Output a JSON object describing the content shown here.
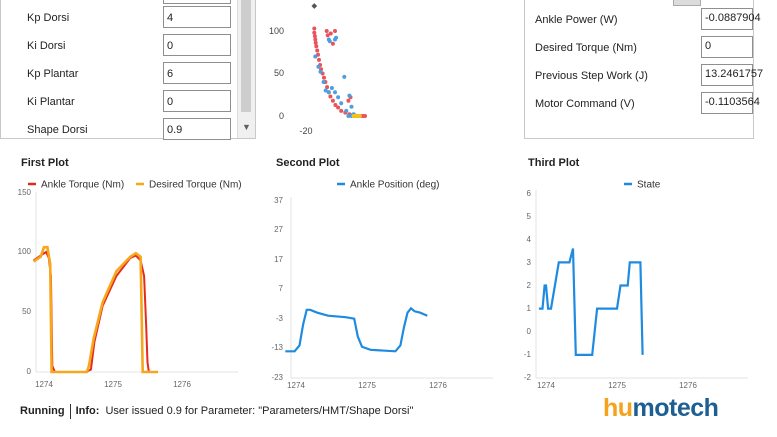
{
  "parameters": [
    {
      "label": "Kp Dorsi",
      "value": "4"
    },
    {
      "label": "Ki Dorsi",
      "value": "0"
    },
    {
      "label": "Kp Plantar",
      "value": "6"
    },
    {
      "label": "Ki Plantar",
      "value": "0"
    },
    {
      "label": "Shape Dorsi",
      "value": "0.9"
    }
  ],
  "status_fields": [
    {
      "label": "Ankle Power (W)",
      "value": "-0.0887904"
    },
    {
      "label": "Desired Torque (Nm)",
      "value": "0"
    },
    {
      "label": "Previous Step Work (J)",
      "value": "13.2461757"
    },
    {
      "label": "Motor Command (V)",
      "value": "-0.1103564"
    }
  ],
  "scatter_plot": {
    "chart_data": {
      "type": "scatter",
      "y_ticks": [
        "100",
        "50",
        "0"
      ],
      "x_ticks": [
        "-20"
      ],
      "colors": {
        "series_a": "#e8545b",
        "series_b": "#4a9fe0",
        "marker": "#555555"
      },
      "series": [
        {
          "key": "a",
          "points": [
            [
              -16,
              103
            ],
            [
              -16,
              98
            ],
            [
              -15.7,
              94
            ],
            [
              -15.5,
              90
            ],
            [
              -15.3,
              86
            ],
            [
              -15,
              82
            ],
            [
              -14.6,
              77
            ],
            [
              -14.2,
              72
            ],
            [
              -13.7,
              66
            ],
            [
              -13.2,
              60
            ],
            [
              -12.7,
              55
            ],
            [
              -12,
              50
            ],
            [
              -11.3,
              45
            ],
            [
              -10.6,
              40
            ],
            [
              -9.8,
              34
            ],
            [
              -9,
              28
            ],
            [
              -8.2,
              23
            ],
            [
              -7,
              18
            ],
            [
              -5.8,
              13
            ],
            [
              -4.5,
              10
            ],
            [
              -3,
              6
            ],
            [
              -1,
              4
            ],
            [
              1,
              2
            ],
            [
              2.5,
              1
            ],
            [
              3.5,
              1
            ],
            [
              4.5,
              0
            ],
            [
              5.5,
              0
            ],
            [
              6.5,
              0
            ],
            [
              7.5,
              0
            ],
            [
              8.5,
              0
            ],
            [
              -10,
              100
            ],
            [
              -9.5,
              95
            ],
            [
              -8,
              97
            ],
            [
              -6,
              100
            ],
            [
              0.5,
              18
            ],
            [
              1.5,
              22
            ],
            [
              -7,
              85
            ]
          ]
        },
        {
          "key": "b",
          "points": [
            [
              -15.5,
              70
            ],
            [
              -14,
              58
            ],
            [
              -13,
              52
            ],
            [
              -11.5,
              40
            ],
            [
              -10.5,
              30
            ],
            [
              -9,
              28
            ],
            [
              -7.5,
              33
            ],
            [
              -6,
              28
            ],
            [
              -4.5,
              22
            ],
            [
              -3,
              15
            ],
            [
              -9,
              90
            ],
            [
              -8.5,
              88
            ],
            [
              -6,
              90
            ],
            [
              -5.5,
              92
            ],
            [
              -1.5,
              46
            ],
            [
              -0.5,
              6
            ],
            [
              1,
              24
            ],
            [
              2,
              11
            ],
            [
              3,
              2
            ],
            [
              0.5,
              0
            ],
            [
              2,
              0
            ],
            [
              3.5,
              0
            ]
          ]
        },
        {
          "key": "y",
          "points": [
            [
              3,
              0
            ],
            [
              4,
              0
            ],
            [
              5,
              0
            ],
            [
              6,
              0
            ]
          ]
        }
      ],
      "marker_point": [
        -16,
        135
      ]
    }
  },
  "plots": [
    {
      "title": "First Plot",
      "chart_data": {
        "type": "line",
        "y_ticks": [
          "150",
          "100",
          "50",
          "0"
        ],
        "x_ticks": [
          "1274",
          "1275",
          "1276"
        ],
        "series": [
          {
            "name": "Ankle Torque (Nm)",
            "color": "#e52a1d",
            "points": [
              [
                1273.85,
                93
              ],
              [
                1273.95,
                97
              ],
              [
                1274.03,
                100
              ],
              [
                1274.07,
                95
              ],
              [
                1274.1,
                80
              ],
              [
                1274.12,
                5
              ],
              [
                1274.16,
                0
              ],
              [
                1274.6,
                0
              ],
              [
                1274.68,
                2
              ],
              [
                1274.73,
                25
              ],
              [
                1274.85,
                55
              ],
              [
                1275.05,
                80
              ],
              [
                1275.25,
                95
              ],
              [
                1275.33,
                97
              ],
              [
                1275.4,
                93
              ],
              [
                1275.45,
                80
              ],
              [
                1275.48,
                40
              ],
              [
                1275.5,
                8
              ],
              [
                1275.52,
                0
              ],
              [
                1275.65,
                0
              ]
            ]
          },
          {
            "name": "Desired Torque (Nm)",
            "color": "#f6a71b",
            "points": [
              [
                1273.85,
                92
              ],
              [
                1273.95,
                96
              ],
              [
                1274.0,
                104
              ],
              [
                1274.05,
                104
              ],
              [
                1274.09,
                90
              ],
              [
                1274.11,
                0
              ],
              [
                1274.62,
                0
              ],
              [
                1274.65,
                5
              ],
              [
                1274.72,
                28
              ],
              [
                1274.85,
                58
              ],
              [
                1275.05,
                84
              ],
              [
                1275.25,
                96
              ],
              [
                1275.33,
                99
              ],
              [
                1275.4,
                96
              ],
              [
                1275.43,
                0
              ],
              [
                1275.65,
                0
              ]
            ]
          }
        ]
      }
    },
    {
      "title": "Second Plot",
      "chart_data": {
        "type": "line",
        "y_ticks": [
          "37",
          "27",
          "17",
          "7",
          "-3",
          "-13",
          "-23"
        ],
        "x_ticks": [
          "1274",
          "1275",
          "1276"
        ],
        "series": [
          {
            "name": "Ankle Position (deg)",
            "color": "#1f8be0",
            "points": [
              [
                1273.85,
                -14
              ],
              [
                1273.98,
                -14
              ],
              [
                1274.05,
                -12
              ],
              [
                1274.1,
                -5
              ],
              [
                1274.15,
                0
              ],
              [
                1274.2,
                0
              ],
              [
                1274.3,
                -1
              ],
              [
                1274.45,
                -2
              ],
              [
                1274.7,
                -2.5
              ],
              [
                1274.82,
                -3
              ],
              [
                1274.87,
                -9
              ],
              [
                1274.93,
                -12.5
              ],
              [
                1275.05,
                -13.5
              ],
              [
                1275.4,
                -14
              ],
              [
                1275.47,
                -12
              ],
              [
                1275.52,
                -6
              ],
              [
                1275.57,
                -1
              ],
              [
                1275.62,
                0.5
              ],
              [
                1275.67,
                -0.5
              ],
              [
                1275.75,
                -1
              ],
              [
                1275.85,
                -2
              ]
            ]
          }
        ]
      }
    },
    {
      "title": "Third Plot",
      "chart_data": {
        "type": "line",
        "y_ticks": [
          "6",
          "5",
          "4",
          "3",
          "2",
          "1",
          "0",
          "-1",
          "-2"
        ],
        "x_ticks": [
          "1274",
          "1275",
          "1276"
        ],
        "series": [
          {
            "name": "State",
            "color": "#1f8be0",
            "points": [
              [
                1273.9,
                1
              ],
              [
                1273.95,
                1
              ],
              [
                1273.98,
                2
              ],
              [
                1274.0,
                2
              ],
              [
                1274.03,
                1
              ],
              [
                1274.07,
                1
              ],
              [
                1274.18,
                3
              ],
              [
                1274.25,
                3
              ],
              [
                1274.33,
                3
              ],
              [
                1274.38,
                3.6
              ],
              [
                1274.42,
                -1
              ],
              [
                1274.65,
                -1
              ],
              [
                1274.72,
                1
              ],
              [
                1274.9,
                1
              ],
              [
                1275.0,
                1
              ],
              [
                1275.05,
                2
              ],
              [
                1275.15,
                2
              ],
              [
                1275.18,
                3
              ],
              [
                1275.3,
                3
              ],
              [
                1275.33,
                3
              ],
              [
                1275.36,
                -1
              ]
            ]
          }
        ]
      }
    }
  ],
  "status_bar": {
    "state": "Running",
    "info_label": "Info:",
    "message": "User issued 0.9 for Parameter: \"Parameters/HMT/Shape Dorsi\""
  },
  "logo": {
    "part_a": "hu",
    "part_b": "motech",
    "color_a": "#f5a21c",
    "color_b": "#1d5f93"
  }
}
